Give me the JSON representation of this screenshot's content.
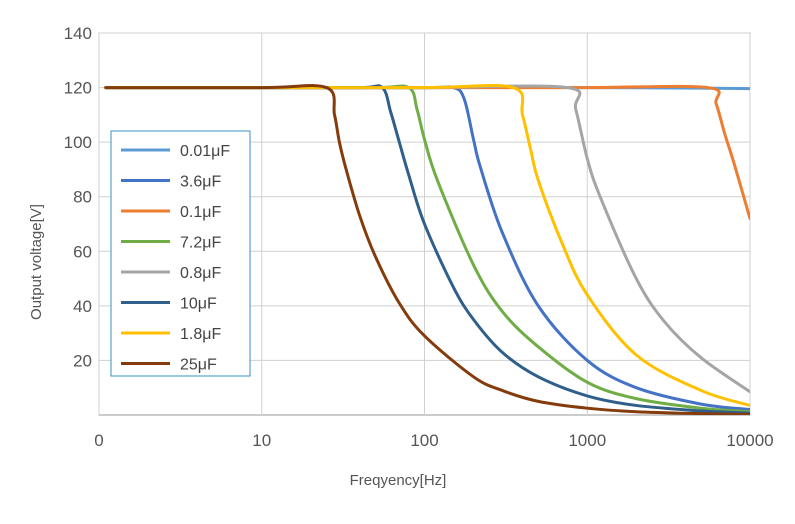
{
  "chart_data": {
    "type": "line",
    "title": "",
    "xlabel": "Freqyency[Hz]",
    "ylabel": "Output voltage[V]",
    "x_scale": "log",
    "xlim": [
      1,
      10000
    ],
    "ylim": [
      0,
      140
    ],
    "x_ticks": [
      1,
      10,
      100,
      1000,
      10000
    ],
    "x_tick_labels": [
      "0",
      "10",
      "100",
      "1000",
      "10000"
    ],
    "y_ticks": [
      20,
      40,
      60,
      80,
      100,
      120,
      140
    ],
    "y_tick_labels": [
      "20",
      "40",
      "60",
      "80",
      "100",
      "120",
      "140"
    ],
    "grid": true,
    "legend_position": "left",
    "series": [
      {
        "name": "0.01μF",
        "color": "#5b9bd5",
        "x": [
          1.1,
          10,
          100,
          1000,
          5000,
          10000
        ],
        "y": [
          120,
          120,
          120,
          120,
          119.8,
          119.6
        ]
      },
      {
        "name": "3.6μF",
        "color": "#4472c4",
        "x": [
          1.1,
          10,
          100,
          150,
          175,
          200,
          220,
          300,
          500,
          1000,
          2000,
          5000,
          10000
        ],
        "y": [
          120,
          120,
          120,
          120,
          116,
          101,
          91,
          67,
          40,
          20,
          10,
          4,
          2
        ]
      },
      {
        "name": "0.1μF",
        "color": "#ed7d31",
        "x": [
          1.1,
          10,
          100,
          1000,
          5500,
          6200,
          7000,
          8000,
          10000
        ],
        "y": [
          120,
          120,
          120,
          120,
          120,
          114,
          103,
          92,
          72
        ]
      },
      {
        "name": "7.2μF",
        "color": "#70ad47",
        "x": [
          1.1,
          10,
          50,
          80,
          90,
          100,
          120,
          200,
          300,
          500,
          1000,
          2000,
          5000,
          10000
        ],
        "y": [
          120,
          120,
          120,
          120,
          112,
          101,
          86,
          55,
          38,
          25,
          12,
          6,
          2.5,
          1.2
        ]
      },
      {
        "name": "0.8μF",
        "color": "#a5a5a5",
        "x": [
          1.1,
          10,
          100,
          750,
          850,
          1000,
          1200,
          2000,
          3000,
          5000,
          10000
        ],
        "y": [
          120,
          120,
          120,
          120,
          112,
          94,
          80,
          50,
          34,
          21,
          8.5
        ]
      },
      {
        "name": "10μF",
        "color": "#2f5f8a",
        "x": [
          1.1,
          10,
          40,
          55,
          62,
          70,
          80,
          100,
          150,
          200,
          300,
          500,
          1000,
          2000,
          5000,
          10000
        ],
        "y": [
          120,
          120,
          120,
          120,
          111,
          100,
          88,
          70,
          47,
          35,
          23,
          14,
          7,
          3.5,
          1.5,
          0.7
        ]
      },
      {
        "name": "1.8μF",
        "color": "#ffc000",
        "x": [
          1.1,
          10,
          100,
          350,
          400,
          450,
          500,
          700,
          1000,
          2000,
          5000,
          10000
        ],
        "y": [
          120,
          120,
          120,
          120,
          110,
          97,
          86,
          63,
          44,
          22,
          9,
          3.5
        ]
      },
      {
        "name": "25μF",
        "color": "#843c0c",
        "x": [
          1.1,
          10,
          25,
          28,
          30,
          33,
          40,
          50,
          70,
          100,
          200,
          300,
          500,
          1000,
          2000,
          5000,
          10000
        ],
        "y": [
          120,
          120,
          120,
          110,
          100,
          90,
          73,
          58,
          41,
          29,
          14,
          9,
          5,
          2.5,
          1.2,
          0.5,
          0.2
        ]
      }
    ]
  }
}
